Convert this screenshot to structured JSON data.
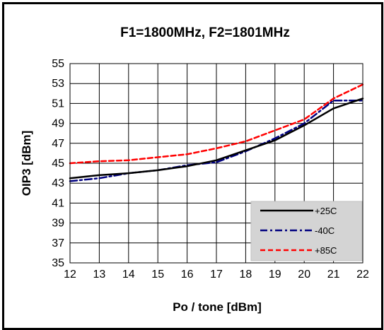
{
  "chart_data": {
    "type": "line",
    "title": "F1=1800MHz, F2=1801MHz",
    "xlabel": "Po / tone [dBm]",
    "ylabel": "OIP3 [dBm]",
    "xlim": [
      12,
      22
    ],
    "ylim": [
      35,
      55
    ],
    "xticks": [
      "12",
      "13",
      "14",
      "15",
      "16",
      "17",
      "18",
      "19",
      "20",
      "21",
      "22"
    ],
    "yticks": [
      "35",
      "37",
      "39",
      "41",
      "43",
      "45",
      "47",
      "49",
      "51",
      "53",
      "55"
    ],
    "grid": true,
    "legend_position": "bottom-right",
    "x": [
      12,
      13,
      14,
      15,
      16,
      17,
      18,
      19,
      20,
      21,
      22
    ],
    "series": [
      {
        "name": "+25C",
        "color": "#000000",
        "dash": "solid",
        "values": [
          43.5,
          43.8,
          44.0,
          44.3,
          44.7,
          45.3,
          46.3,
          47.3,
          48.8,
          50.5,
          51.5
        ]
      },
      {
        "name": "-40C",
        "color": "#000080",
        "dash": "dashdot",
        "values": [
          43.2,
          43.5,
          44.0,
          44.3,
          44.8,
          45.1,
          46.2,
          47.5,
          49.0,
          51.3,
          51.3
        ]
      },
      {
        "name": "+85C",
        "color": "#ff0000",
        "dash": "dashed",
        "values": [
          45.0,
          45.2,
          45.3,
          45.6,
          45.9,
          46.5,
          47.2,
          48.3,
          49.4,
          51.5,
          52.9
        ]
      }
    ]
  }
}
